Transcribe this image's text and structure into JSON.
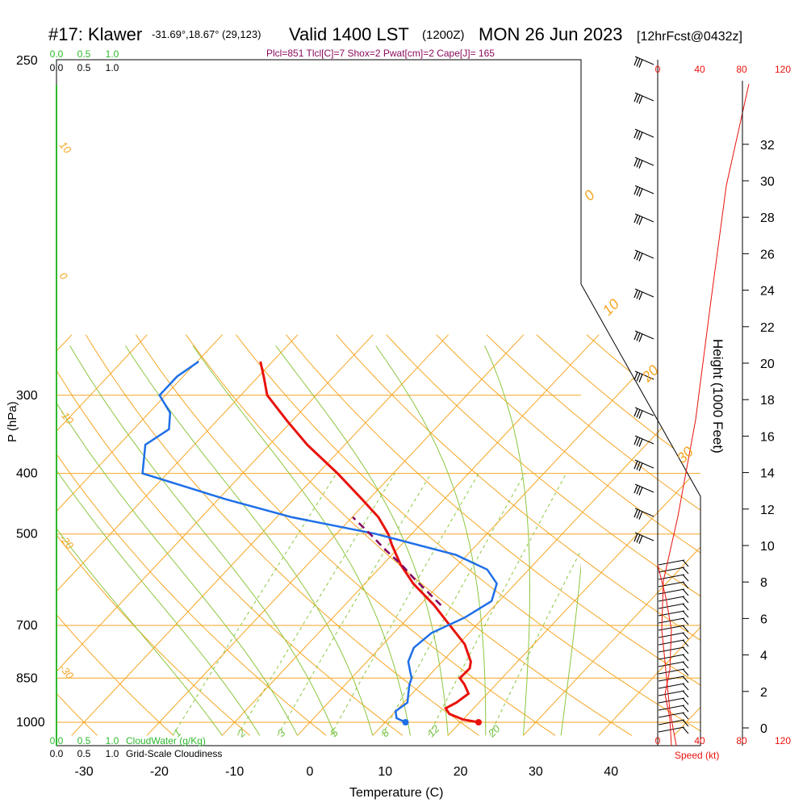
{
  "header": {
    "station": "#17: Klawer",
    "coords": "-31.69°,18.67° (29,123)",
    "valid": "Valid 1400 LST",
    "utc": "(1200Z)",
    "date": "MON 26 Jun 2023",
    "forecast": "[12hrFcst@0432z]",
    "indices": "Plcl=851 Tlcl[C]=7 Shox=2 Pwat[cm]=2 Cape[J]= 165"
  },
  "colors": {
    "isotherm": "#f5a623",
    "dry_adiabat": "#f5a623",
    "moist_adiabat": "#8cc63f",
    "mixing_ratio": "#8cc63f",
    "temperature": "#e8120c",
    "dewpoint": "#1e6fe8",
    "parcel": "#800060",
    "wind_speed": "#e8120c",
    "cloud_water": "#2eb82e"
  },
  "chart_data": {
    "type": "line",
    "title": "#17: Klawer",
    "xlabel": "Temperature (C)",
    "ylabel": "P (hPa)",
    "x_ticks": [
      "-30",
      "-20",
      "-10",
      "0",
      "10",
      "20",
      "30",
      "40"
    ],
    "y_ticks": [
      "250",
      "300",
      "400",
      "500",
      "700",
      "850",
      "1000"
    ],
    "pressure_levels": [
      250,
      300,
      400,
      500,
      700,
      850,
      1000
    ],
    "isotherm_labels": [
      "10",
      "0",
      "-10",
      "-20",
      "-30"
    ],
    "temp_labels": [
      "0",
      "10",
      "20",
      "30"
    ],
    "mixing_ratio_labels": [
      "1",
      "2",
      "3",
      "5",
      "8",
      "12",
      "20"
    ],
    "series": [
      {
        "name": "Temperature",
        "pressure": [
          1000,
          990,
          970,
          950,
          930,
          900,
          870,
          850,
          820,
          800,
          750,
          700,
          650,
          600,
          560,
          520,
          500,
          470,
          440,
          400,
          360,
          330,
          300,
          280,
          265
        ],
        "temp": [
          22.4,
          20,
          17.5,
          16.3,
          17.0,
          17.5,
          15.8,
          14.4,
          14.5,
          13.8,
          10.8,
          6.5,
          1.9,
          -3.6,
          -7.6,
          -11.3,
          -13.1,
          -16.5,
          -20.9,
          -27.4,
          -35.0,
          -40.6,
          -46.5,
          -49.3,
          -51.6
        ]
      },
      {
        "name": "Dewpoint",
        "pressure": [
          1000,
          985,
          960,
          930,
          900,
          870,
          850,
          830,
          800,
          760,
          720,
          680,
          640,
          600,
          570,
          540,
          500,
          470,
          440,
          400,
          360,
          340,
          320,
          300,
          280,
          265
        ],
        "temp": [
          12.7,
          11,
          10,
          10.5,
          9.5,
          8.5,
          8.0,
          7,
          5.5,
          4.5,
          5.0,
          7.5,
          9.0,
          7.5,
          4.5,
          -1.5,
          -14.7,
          -28,
          -39,
          -53.3,
          -56.5,
          -55.3,
          -57.2,
          -60.8,
          -60.8,
          -59.8
        ]
      },
      {
        "name": "Parcel",
        "pressure": [
          650,
          620,
          590,
          560,
          530,
          500,
          470
        ],
        "temp": [
          2.8,
          -0.5,
          -4,
          -7.5,
          -11.5,
          -15.5,
          -19.9
        ]
      }
    ],
    "surface_temp": 22.4,
    "surface_dewpoint": 12.7
  },
  "right_axis": {
    "height_label": "Height (1000 Feet)",
    "height_ticks": [
      "0",
      "2",
      "4",
      "6",
      "8",
      "10",
      "12",
      "14",
      "16",
      "18",
      "20",
      "22",
      "24",
      "26",
      "28",
      "30",
      "32"
    ],
    "speed_ticks": [
      "0",
      "40",
      "80",
      "120"
    ],
    "speed_label": "Speed (kt)"
  },
  "left_legend": {
    "cloud_ticks": [
      "0.0",
      "0.5",
      "1.0"
    ],
    "cloud_water_label": "CloudWater (g/Kg)",
    "cloudiness_label": "Grid-Scale Cloudiness"
  }
}
